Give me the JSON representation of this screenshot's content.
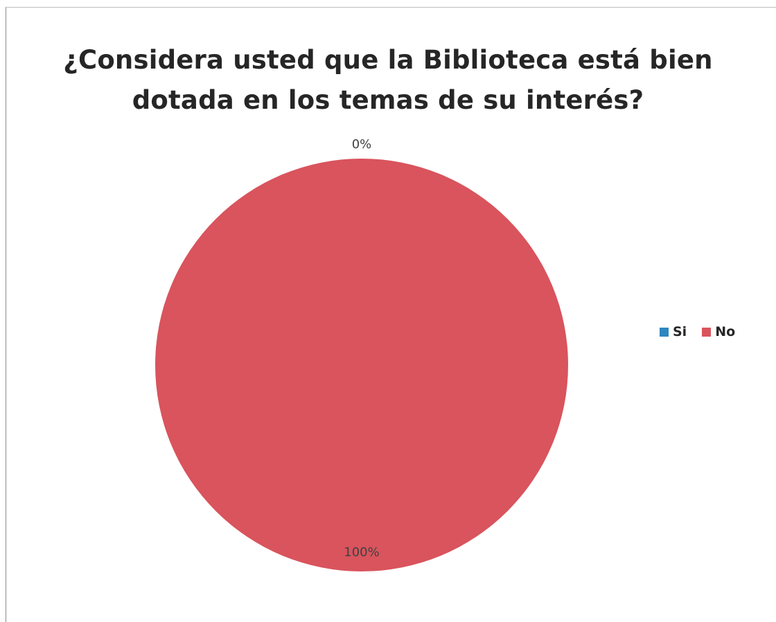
{
  "chart_data": {
    "type": "pie",
    "title": "¿Considera usted que la Biblioteca está bien dotada en los temas de su interés?",
    "title_lines": [
      "¿Considera usted que la Biblioteca está bien",
      "dotada en los temas de su interés?"
    ],
    "categories": [
      "Si",
      "No"
    ],
    "values": [
      0,
      100
    ],
    "data_labels": [
      "0%",
      "100%"
    ],
    "colors": [
      "#2e86c1",
      "#d9545d"
    ],
    "legend": {
      "position": "right"
    }
  }
}
